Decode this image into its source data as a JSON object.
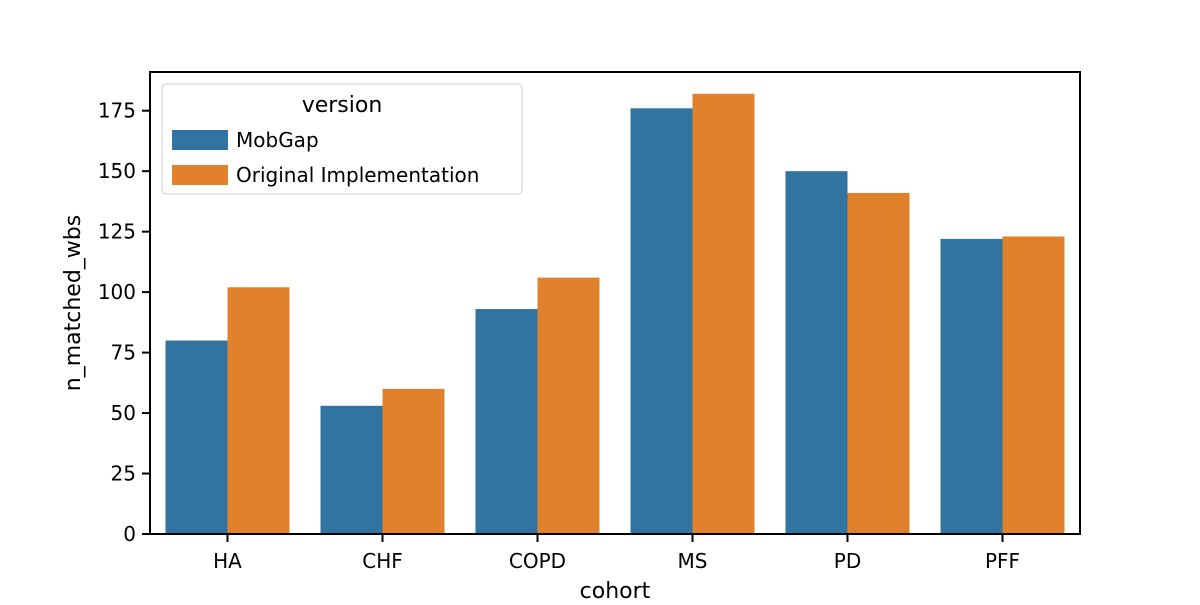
{
  "chart_data": {
    "type": "bar",
    "title": "",
    "xlabel": "cohort",
    "ylabel": "n_matched_wbs",
    "categories": [
      "HA",
      "CHF",
      "COPD",
      "MS",
      "PD",
      "PFF"
    ],
    "series": [
      {
        "name": "MobGap",
        "color": "#3274a1",
        "values": [
          80,
          53,
          93,
          176,
          150,
          122
        ]
      },
      {
        "name": "Original Implementation",
        "color": "#e1812c",
        "values": [
          102,
          60,
          106,
          182,
          141,
          123
        ]
      }
    ],
    "ylim": [
      0,
      191
    ],
    "yticks": [
      0,
      25,
      50,
      75,
      100,
      125,
      150,
      175
    ],
    "grid": false,
    "legend": {
      "title": "version",
      "position": "top-left"
    }
  }
}
